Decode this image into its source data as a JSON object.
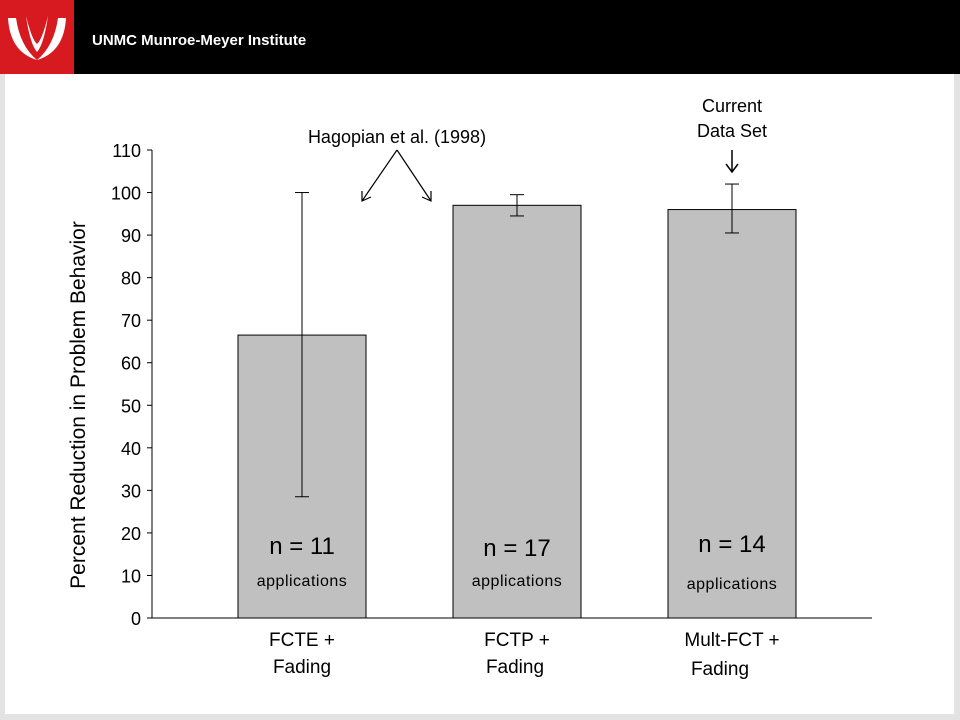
{
  "header": {
    "title": "UNMC Munroe-Meyer Institute",
    "brand_color": "#d71920",
    "bar_color": "#000000",
    "logo_icon": "unmc-logo-icon"
  },
  "chart_data": {
    "type": "bar",
    "categories": [
      "FCTE + Fading",
      "FCTP + Fading",
      "Mult-FCT + Fading"
    ],
    "category_lines": [
      [
        "FCTE +",
        "Fading"
      ],
      [
        "FCTP +",
        "Fading"
      ],
      [
        "Mult-FCT +",
        "Fading"
      ]
    ],
    "values": [
      66.5,
      97,
      96
    ],
    "error_low": [
      28.5,
      94.5,
      90.5
    ],
    "error_high": [
      100,
      99.5,
      102
    ],
    "bar_labels": [
      "n = 11",
      "n = 17",
      "n = 14"
    ],
    "bar_sublabels": [
      "applications",
      "applications",
      "applications"
    ],
    "ylabel": "Percent Reduction in Problem Behavior",
    "xlabel": "",
    "ylim": [
      0,
      110
    ],
    "yticks": [
      0,
      10,
      20,
      30,
      40,
      50,
      60,
      70,
      80,
      90,
      100,
      110
    ],
    "bar_color": "#c0c0c0",
    "grid": false,
    "annotations": {
      "hagopian": "Hagopian et al. (1998)",
      "current_line1": "Current",
      "current_line2": "Data Set"
    }
  }
}
